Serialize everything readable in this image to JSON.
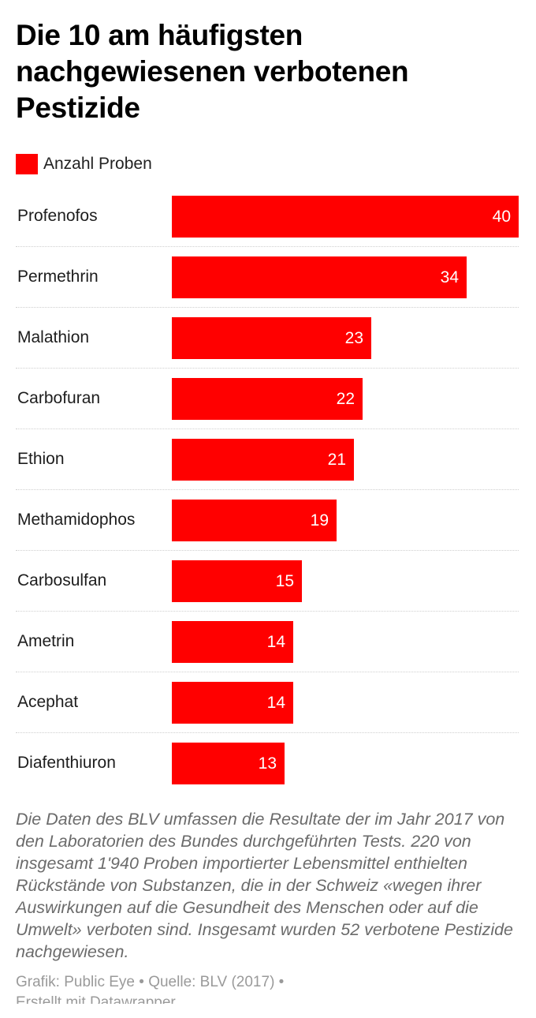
{
  "title": "Die 10 am häufigsten nachgewiesenen verbotenen Pestizide",
  "legend": {
    "label": "Anzahl Proben",
    "color": "#ff0000"
  },
  "chart_data": {
    "type": "bar",
    "orientation": "horizontal",
    "title": "Die 10 am häufigsten nachgewiesenen verbotenen Pestizide",
    "categories": [
      "Profenofos",
      "Permethrin",
      "Malathion",
      "Carbofuran",
      "Ethion",
      "Methamidophos",
      "Carbosulfan",
      "Ametrin",
      "Acephat",
      "Diafenthiuron"
    ],
    "series": [
      {
        "name": "Anzahl Proben",
        "values": [
          40,
          34,
          23,
          22,
          21,
          19,
          15,
          14,
          14,
          13
        ],
        "color": "#ff0000"
      }
    ],
    "xlim": [
      0,
      40
    ],
    "grid": false,
    "legend_position": "top-left",
    "data_labels": "inside-end"
  },
  "note": "Die Daten des BLV umfassen die Resultate der im Jahr 2017 von den Laboratorien des Bundes durchgeführten Tests. 220 von insgesamt 1'940 Proben importierter Lebensmittel enthielten Rückstände von Substanzen, die in der Schweiz «wegen ihrer Auswirkungen auf die Gesundheit des Menschen oder auf die Umwelt» verboten sind. Insgesamt wurden 52 verbotene Pestizide nachgewiesen.",
  "credits": {
    "line": "Grafik: Public Eye • Quelle: BLV (2017) •",
    "made_with": "Erstellt mit Datawrapper"
  }
}
